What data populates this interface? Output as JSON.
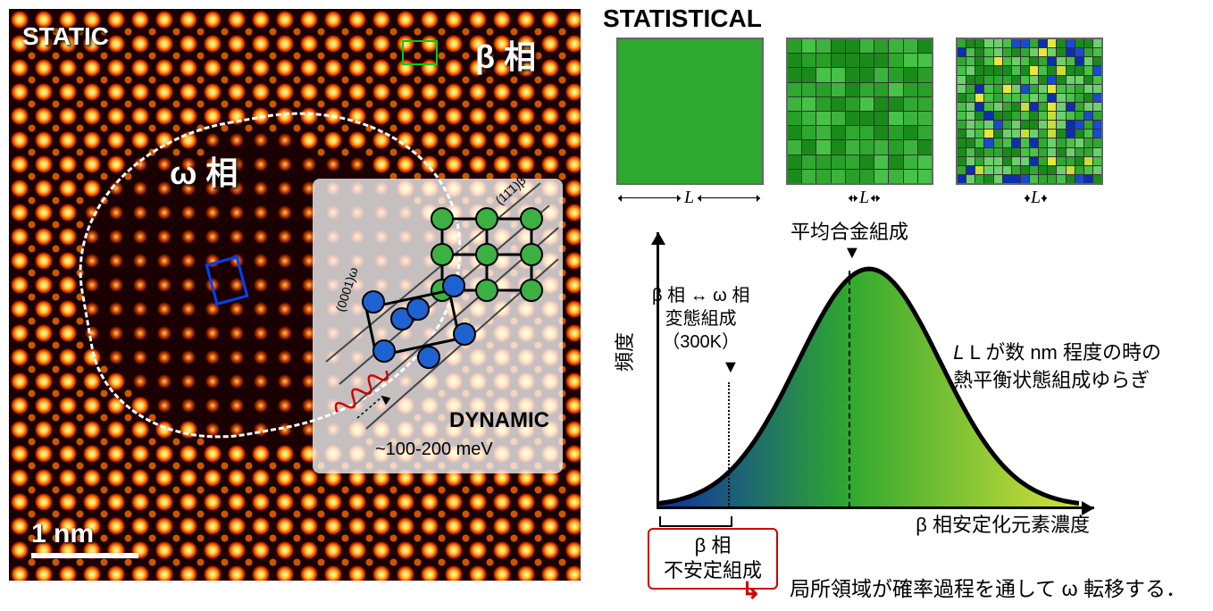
{
  "left": {
    "static_label": "STATIC",
    "beta_label": "β 相",
    "omega_label": "ω 相",
    "dynamic_label": "DYNAMIC",
    "energy_label": "~100-200 meV",
    "scale_label": "1 nm",
    "inset": {
      "plane_beta": "(11̄1)β",
      "plane_omega": "(0001)ω"
    },
    "colors": {
      "atom_bright": "#ffee88",
      "atom_mid": "#ff8800",
      "atom_dark": "#7a0000",
      "bg": "#1a0000",
      "beta_box": "#00d000",
      "blue_box": "#0040ff",
      "inset_bg": "rgba(255,255,255,0.75)",
      "node_green": "#3cb043",
      "node_blue": "#1e62d0"
    }
  },
  "right": {
    "stat_label": "STATISTICAL",
    "L_label": "L",
    "grids": {
      "grid2_colors": [
        "#1a8a1a",
        "#2fa82f",
        "#46c246",
        "#3cb33c",
        "#28a028"
      ],
      "grid3_colors": [
        "#0b2fb0",
        "#1a4ad0",
        "#1a8a1a",
        "#2fa82f",
        "#46c246",
        "#6dd06d",
        "#c8de3a",
        "#e8e83a"
      ]
    },
    "chart": {
      "y_label": "頻度",
      "x_label": "β 相安定化元素濃度",
      "mean_label": "平均合金組成",
      "trans_label_1": "β 相 ↔ ω 相",
      "trans_label_2": "変態組成",
      "trans_label_3": "（300K）",
      "fluct_label_1": "L が数 nm 程度の時の",
      "fluct_label_2": "熱平衡状態組成ゆらぎ",
      "beta_unstable_1": "β 相",
      "beta_unstable_2": "不安定組成",
      "bottom_text": "局所領域が確率過程を通して ω 転移する．",
      "colors": {
        "gradient_left": "#0e2fa8",
        "gradient_mid": "#2fa82f",
        "gradient_right": "#d8e03a",
        "red_box": "#d00000"
      },
      "gauss": {
        "mu": 0.5,
        "sigma": 0.17
      }
    }
  }
}
